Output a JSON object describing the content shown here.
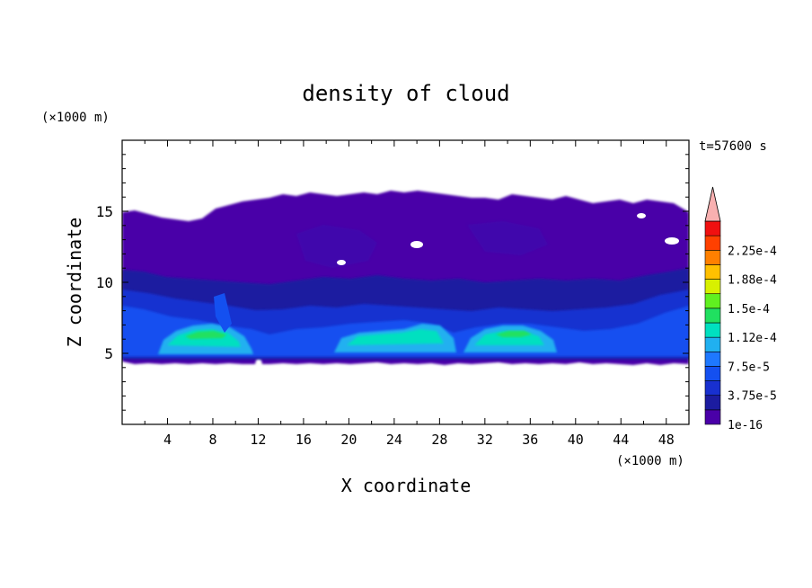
{
  "chart_data": {
    "type": "heatmap",
    "title": "density of cloud",
    "xlabel": "X coordinate",
    "ylabel": "Z coordinate",
    "x_unit": "(×1000 m)",
    "y_unit": "(×1000 m)",
    "time_label": "t=57600 s",
    "xlim": [
      0,
      50
    ],
    "ylim": [
      0,
      20
    ],
    "x_ticks": [
      4,
      8,
      12,
      16,
      20,
      24,
      28,
      32,
      36,
      40,
      44,
      48
    ],
    "y_ticks": [
      5,
      10,
      15
    ],
    "colorbar": {
      "levels": [
        1e-16,
        1.875e-05,
        3.75e-05,
        5.625e-05,
        7.5e-05,
        9.375e-05,
        0.0001125,
        0.00013125,
        0.00015,
        0.00016875,
        0.0001875,
        0.00020625,
        0.000225,
        0.00024375
      ],
      "tick_labels": [
        "1e-16",
        "3.75e-5",
        "7.5e-5",
        "1.12e-4",
        "1.5e-4",
        "1.88e-4",
        "2.25e-4"
      ],
      "colors": [
        "#4a00a8",
        "#1c1ca0",
        "#1830d0",
        "#1450f0",
        "#1e78ff",
        "#20b0f0",
        "#00e0c0",
        "#20e060",
        "#60f020",
        "#d8f000",
        "#ffc000",
        "#ff8000",
        "#ff4000",
        "#f01010"
      ],
      "overflow_color": "#f8b0b0"
    },
    "regions": [
      {
        "name": "cloud-base",
        "x": [
          0,
          50
        ],
        "z": [
          4.5,
          4.8
        ]
      },
      {
        "name": "cloud-top",
        "x": [
          0,
          50
        ],
        "z": [
          14.5,
          16.4
        ]
      },
      {
        "name": "cell-1",
        "x_center": 8,
        "z_peak": 7,
        "max_density": 0.00013
      },
      {
        "name": "cell-2",
        "x_center": 24,
        "z_peak": 7,
        "max_density": 0.00011
      },
      {
        "name": "cell-3",
        "x_center": 34,
        "z_peak": 7,
        "max_density": 0.00013
      }
    ]
  }
}
